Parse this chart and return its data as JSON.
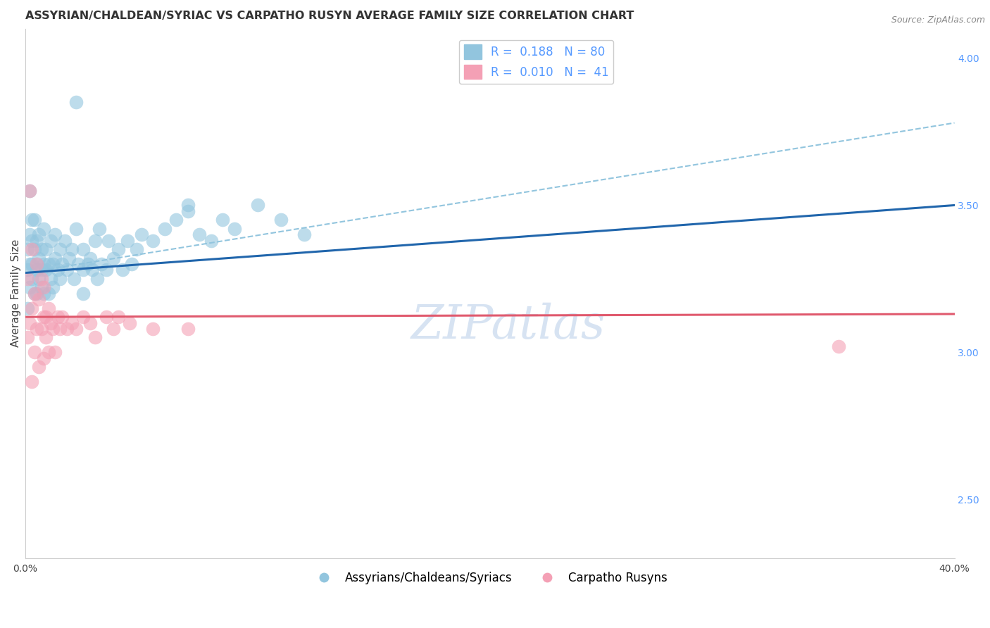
{
  "title": "ASSYRIAN/CHALDEAN/SYRIAC VS CARPATHO RUSYN AVERAGE FAMILY SIZE CORRELATION CHART",
  "source": "Source: ZipAtlas.com",
  "ylabel": "Average Family Size",
  "xlim": [
    0.0,
    0.4
  ],
  "ylim": [
    2.3,
    4.1
  ],
  "yticks_right": [
    2.5,
    3.0,
    3.5,
    4.0
  ],
  "blue_R": "0.188",
  "blue_N": "80",
  "pink_R": "0.010",
  "pink_N": "41",
  "blue_color": "#92c5de",
  "pink_color": "#f4a0b5",
  "blue_line_color": "#2166ac",
  "pink_line_color": "#e05a6e",
  "dashed_line_color": "#92c5de",
  "watermark_text": "ZIPatlas",
  "legend_labels": [
    "Assyrians/Chaldeans/Syriacs",
    "Carpatho Rusyns"
  ],
  "blue_scatter_x": [
    0.001,
    0.001,
    0.001,
    0.002,
    0.002,
    0.002,
    0.002,
    0.003,
    0.003,
    0.003,
    0.003,
    0.004,
    0.004,
    0.004,
    0.005,
    0.005,
    0.005,
    0.005,
    0.006,
    0.006,
    0.006,
    0.007,
    0.007,
    0.007,
    0.008,
    0.008,
    0.008,
    0.009,
    0.009,
    0.01,
    0.01,
    0.011,
    0.011,
    0.012,
    0.012,
    0.013,
    0.013,
    0.014,
    0.015,
    0.015,
    0.016,
    0.017,
    0.018,
    0.019,
    0.02,
    0.021,
    0.022,
    0.023,
    0.025,
    0.025,
    0.027,
    0.028,
    0.029,
    0.03,
    0.031,
    0.032,
    0.033,
    0.035,
    0.036,
    0.038,
    0.04,
    0.042,
    0.044,
    0.046,
    0.048,
    0.05,
    0.055,
    0.06,
    0.065,
    0.07,
    0.075,
    0.08,
    0.085,
    0.09,
    0.1,
    0.11,
    0.12,
    0.025,
    0.07,
    0.022
  ],
  "blue_scatter_y": [
    3.28,
    3.35,
    3.15,
    3.55,
    3.3,
    3.22,
    3.4,
    3.45,
    3.3,
    3.38,
    3.25,
    3.35,
    3.2,
    3.45,
    3.28,
    3.38,
    3.2,
    3.3,
    3.32,
    3.25,
    3.4,
    3.22,
    3.35,
    3.28,
    3.3,
    3.42,
    3.2,
    3.35,
    3.28,
    3.3,
    3.2,
    3.38,
    3.25,
    3.3,
    3.22,
    3.4,
    3.32,
    3.28,
    3.35,
    3.25,
    3.3,
    3.38,
    3.28,
    3.32,
    3.35,
    3.25,
    3.42,
    3.3,
    3.28,
    3.35,
    3.3,
    3.32,
    3.28,
    3.38,
    3.25,
    3.42,
    3.3,
    3.28,
    3.38,
    3.32,
    3.35,
    3.28,
    3.38,
    3.3,
    3.35,
    3.4,
    3.38,
    3.42,
    3.45,
    3.48,
    3.4,
    3.38,
    3.45,
    3.42,
    3.5,
    3.45,
    3.4,
    3.2,
    3.5,
    3.85
  ],
  "pink_scatter_x": [
    0.001,
    0.001,
    0.002,
    0.002,
    0.003,
    0.003,
    0.003,
    0.004,
    0.004,
    0.005,
    0.005,
    0.006,
    0.006,
    0.007,
    0.007,
    0.008,
    0.008,
    0.008,
    0.009,
    0.009,
    0.01,
    0.01,
    0.011,
    0.012,
    0.013,
    0.014,
    0.015,
    0.016,
    0.018,
    0.02,
    0.022,
    0.025,
    0.028,
    0.03,
    0.035,
    0.038,
    0.04,
    0.045,
    0.055,
    0.07,
    0.35
  ],
  "pink_scatter_y": [
    3.25,
    3.05,
    3.55,
    3.1,
    3.35,
    3.15,
    2.9,
    3.2,
    3.0,
    3.3,
    3.08,
    3.18,
    2.95,
    3.08,
    3.25,
    3.12,
    3.22,
    2.98,
    3.12,
    3.05,
    3.15,
    3.0,
    3.1,
    3.08,
    3.0,
    3.12,
    3.08,
    3.12,
    3.08,
    3.1,
    3.08,
    3.12,
    3.1,
    3.05,
    3.12,
    3.08,
    3.12,
    3.1,
    3.08,
    3.08,
    3.02
  ],
  "blue_trend_x": [
    0.0,
    0.4
  ],
  "blue_trend_y": [
    3.27,
    3.5
  ],
  "pink_trend_x": [
    0.0,
    0.4
  ],
  "pink_trend_y": [
    3.12,
    3.13
  ],
  "dashed_trend_x": [
    0.0,
    0.4
  ],
  "dashed_trend_y": [
    3.27,
    3.78
  ],
  "grid_color": "#cccccc",
  "background_color": "#ffffff",
  "title_fontsize": 11.5,
  "axis_label_fontsize": 11,
  "tick_fontsize": 10,
  "legend_fontsize": 12,
  "watermark_fontsize": 48,
  "right_tick_color": "#5599ff"
}
